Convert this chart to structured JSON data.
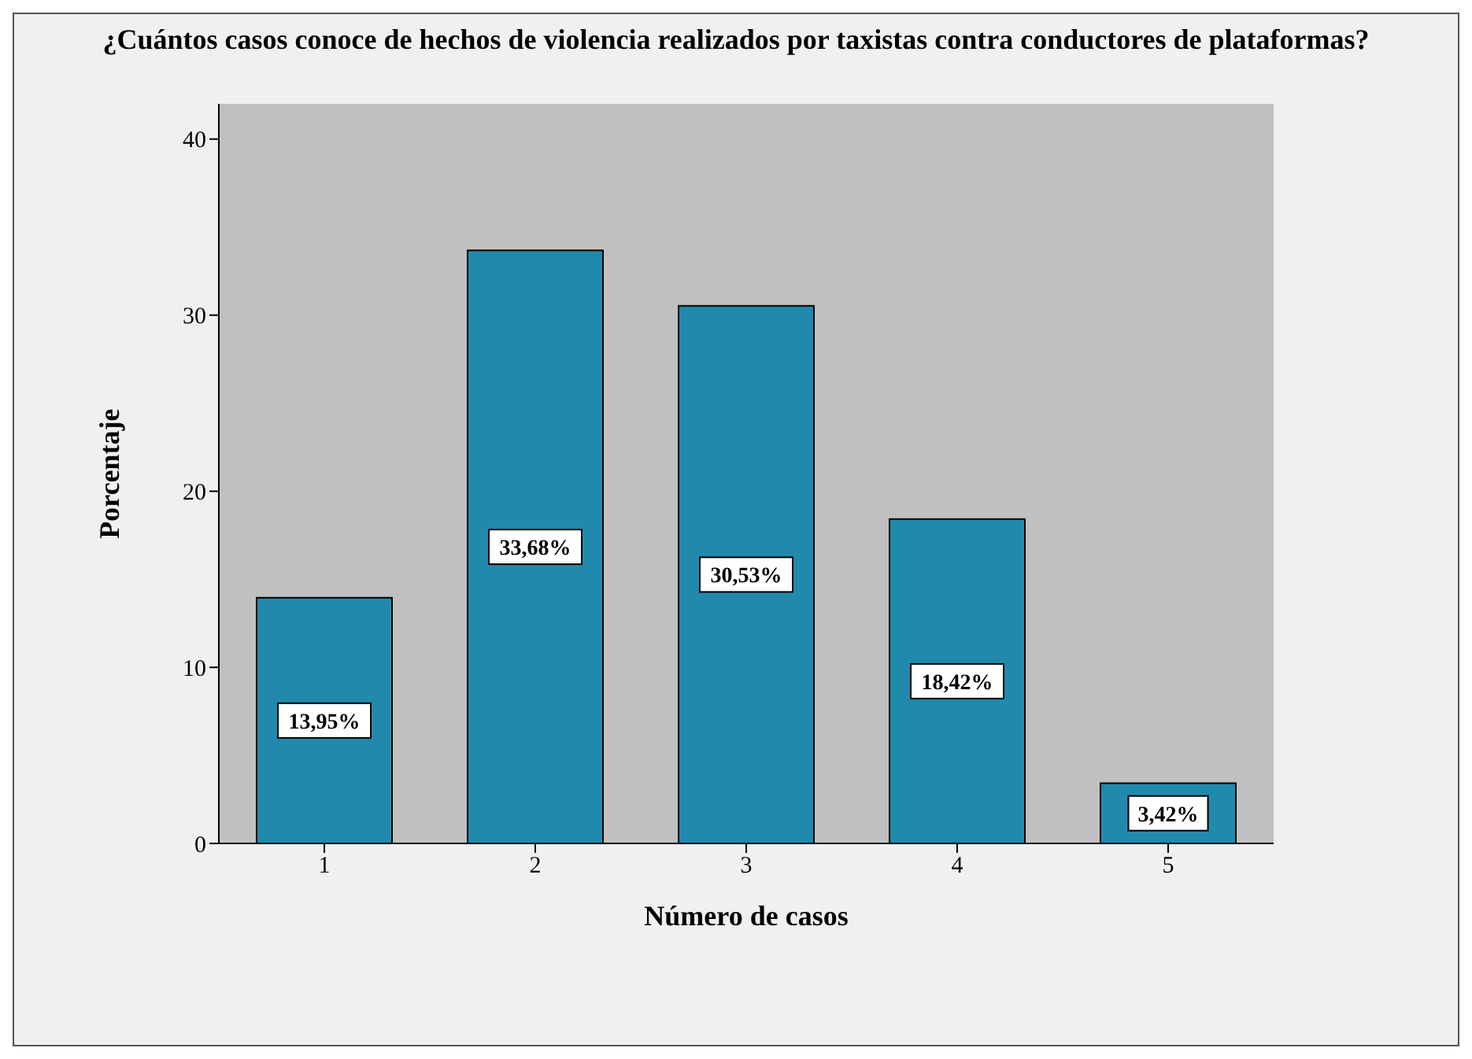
{
  "chart_data": {
    "type": "bar",
    "title": "¿Cuántos casos conoce de hechos de violencia realizados por taxistas contra conductores de plataformas?",
    "xlabel": "Número de casos",
    "ylabel": "Porcentaje",
    "categories": [
      "1",
      "2",
      "3",
      "4",
      "5"
    ],
    "values": [
      13.95,
      33.68,
      30.53,
      18.42,
      3.42
    ],
    "value_labels": [
      "13,95%",
      "33,68%",
      "30,53%",
      "18,42%",
      "3,42%"
    ],
    "color": "#2189ab",
    "ylim": [
      0,
      42
    ],
    "yticks": [
      0,
      10,
      20,
      30,
      40
    ],
    "grid": false
  }
}
